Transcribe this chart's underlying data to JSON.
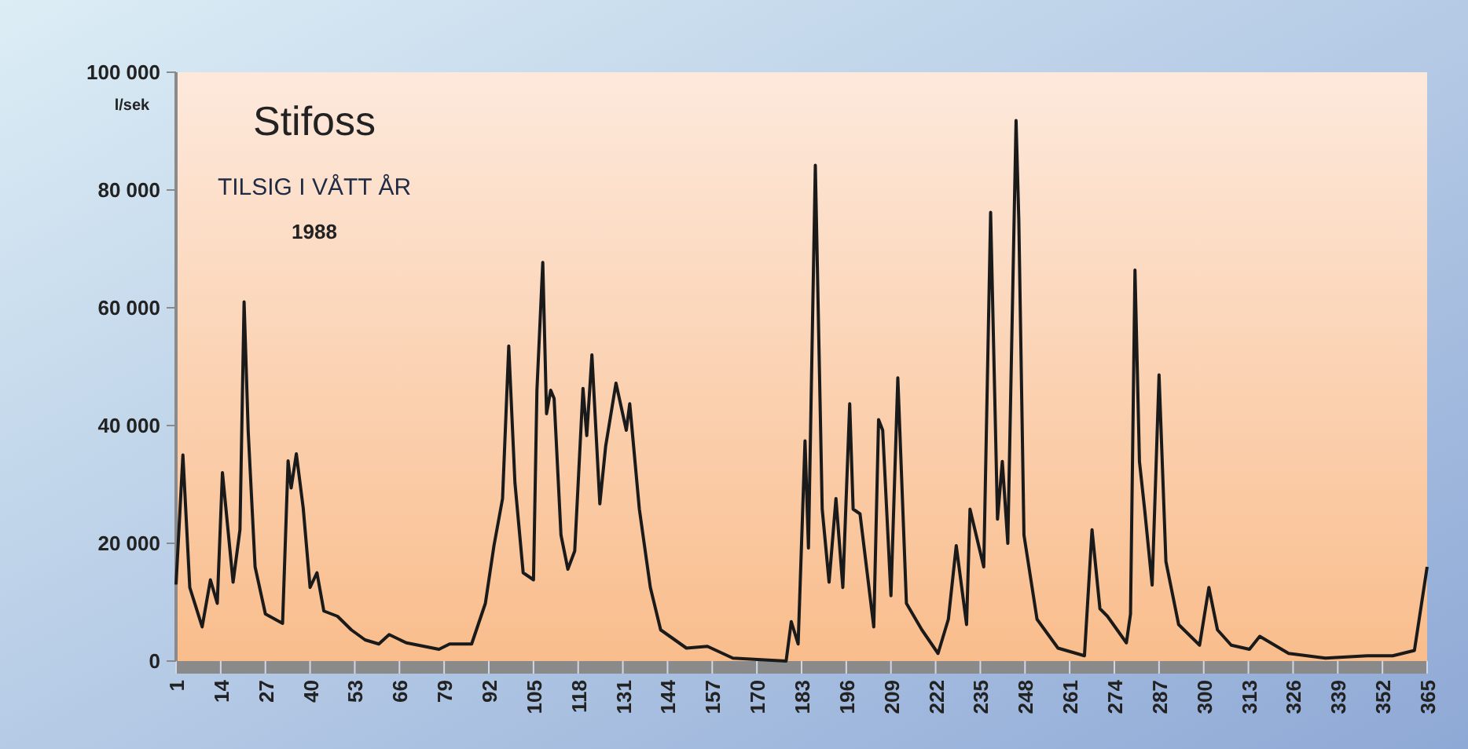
{
  "chart_data": {
    "type": "line",
    "title": "Stifoss",
    "subtitle": "TILSIG I VÅTT ÅR",
    "annotations": [
      "1988"
    ],
    "ylabel": "l/sek",
    "x": [
      1,
      3,
      5,
      8.6,
      11,
      13,
      14.5,
      16,
      17.6,
      19.6,
      20.8,
      22,
      24,
      27,
      32,
      33.6,
      34.5,
      36,
      38,
      40,
      42,
      44,
      48,
      52,
      56,
      60,
      63,
      68,
      77.5,
      80.6,
      87,
      91,
      93.5,
      96,
      97.8,
      99.6,
      102,
      105,
      106,
      107.7,
      108.8,
      110,
      111,
      113,
      115,
      117,
      119.4,
      120.5,
      122,
      124.3,
      126,
      129,
      132,
      133,
      135.8,
      139,
      142,
      149.5,
      155.6,
      163,
      178.5,
      180,
      182,
      184,
      185,
      187,
      189,
      191,
      193,
      195,
      197,
      198,
      200,
      204,
      205.4,
      206.6,
      209,
      211,
      213.5,
      218,
      222.7,
      225.7,
      228,
      231,
      232,
      236,
      238,
      240,
      241.4,
      243,
      245.4,
      246.2,
      247.7,
      251.5,
      257.6,
      265.3,
      267.5,
      269.8,
      272,
      277.5,
      278.7,
      280,
      281.3,
      282.8,
      285,
      287,
      289,
      292.7,
      298.8,
      301.5,
      304,
      308,
      313.3,
      316.3,
      324.7,
      335.4,
      347.6,
      355,
      361.3,
      365
    ],
    "series": [
      {
        "color": "#1a1a1a",
        "values": [
          13000,
          35000,
          12500,
          5800,
          13800,
          9800,
          32000,
          23000,
          13400,
          22300,
          61000,
          39000,
          16000,
          8000,
          6400,
          34000,
          29400,
          35200,
          26000,
          12500,
          15000,
          8500,
          7600,
          5300,
          3600,
          2900,
          4500,
          3100,
          2000,
          2900,
          2900,
          9800,
          19600,
          27600,
          53500,
          30300,
          15000,
          13800,
          46000,
          67700,
          42000,
          46000,
          44600,
          21400,
          15600,
          18700,
          46300,
          38300,
          52000,
          26700,
          36500,
          47200,
          39200,
          43700,
          25800,
          12500,
          5300,
          2200,
          2500,
          500,
          0,
          6700,
          2900,
          37400,
          19200,
          84200,
          25800,
          13400,
          27600,
          12500,
          43700,
          25800,
          25000,
          5800,
          41000,
          39200,
          11100,
          48100,
          9800,
          5300,
          1300,
          7100,
          19600,
          6200,
          25800,
          16000,
          76200,
          24100,
          33900,
          20000,
          91800,
          74900,
          21400,
          7100,
          2200,
          900,
          22300,
          8900,
          7600,
          3100,
          8000,
          66400,
          33900,
          25800,
          12900,
          48600,
          16900,
          6200,
          2700,
          12500,
          5300,
          2700,
          2000,
          4200,
          1300,
          500,
          900,
          900,
          1800,
          16000
        ]
      }
    ],
    "xlim": [
      1,
      365
    ],
    "xticks": [
      1,
      14,
      27,
      40,
      53,
      66,
      79,
      92,
      105,
      118,
      131,
      144,
      157,
      170,
      183,
      196,
      209,
      222,
      235,
      248,
      261,
      274,
      287,
      300,
      313,
      326,
      339,
      352,
      365
    ],
    "ylim": [
      0,
      100000
    ],
    "yticks": [
      0,
      {
        "value": 20000,
        "label": "20 000"
      },
      {
        "value": 40000,
        "label": "40 000"
      },
      {
        "value": 60000,
        "label": "60 000"
      },
      {
        "value": 80000,
        "label": "80 000"
      },
      {
        "value": 100000,
        "label": "100 000"
      }
    ],
    "grid": false,
    "marker": "none",
    "line_style": "solid"
  }
}
